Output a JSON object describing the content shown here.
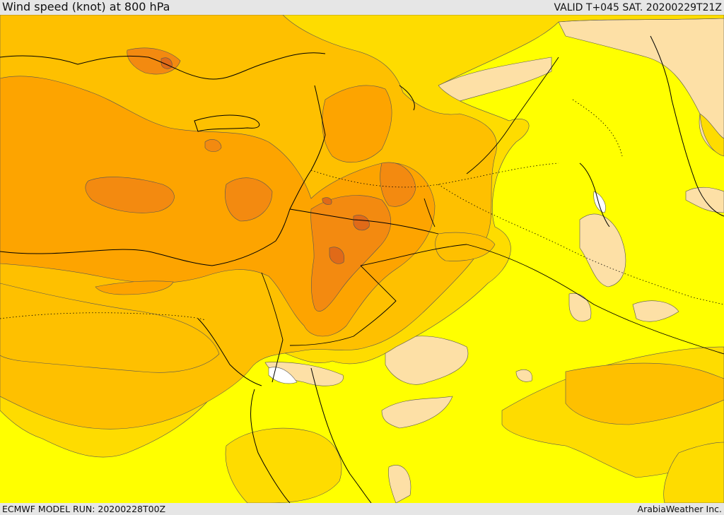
{
  "header": {
    "title": "Wind speed (knot) at 800 hPa",
    "valid_time": "VALID T+045 SAT. 20200229T21Z"
  },
  "footer": {
    "model_run": "ECMWF MODEL RUN: 20200228T00Z",
    "provider": "ArabiaWeather Inc."
  },
  "colors": {
    "background_low": "#ffff00",
    "pale_low": "#fde0a6",
    "calm": "#ffffff",
    "band_1": "#fedc00",
    "band_2": "#fec000",
    "band_3": "#fda400",
    "band_4": "#f38a10",
    "band_5": "#e06a18",
    "coastline": "#000000",
    "contour": "#555555"
  }
}
